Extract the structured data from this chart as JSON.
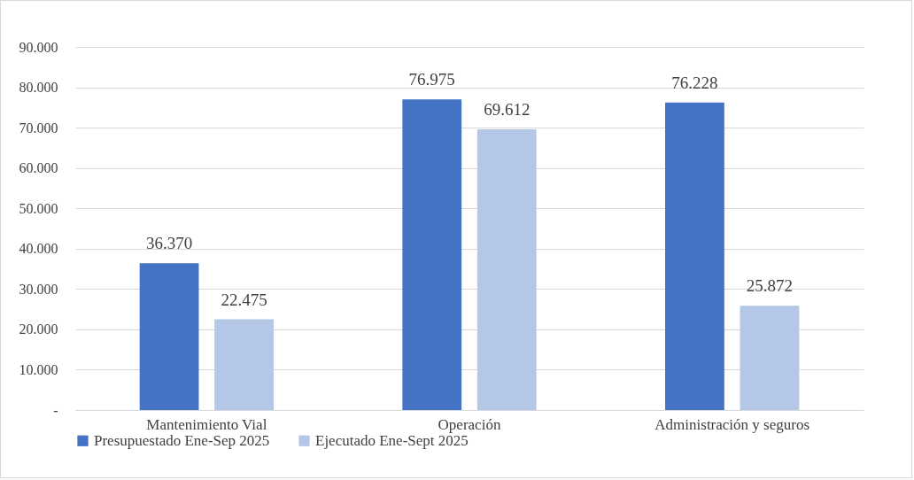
{
  "chart_data": {
    "type": "bar",
    "categories": [
      "Mantenimiento Vial",
      "Operación",
      "Administración y seguros"
    ],
    "series": [
      {
        "name": "Presupuestado Ene-Sep 2025",
        "color": "#4472c4",
        "values": [
          36370,
          76975,
          76228
        ],
        "value_labels": [
          "36.370",
          "76.975",
          "76.228"
        ]
      },
      {
        "name": "Ejecutado Ene-Sept 2025",
        "color": "#b4c7e7",
        "values": [
          22475,
          69612,
          25872
        ],
        "value_labels": [
          "22.475",
          "69.612",
          "25.872"
        ]
      }
    ],
    "ylim": [
      0,
      90000
    ],
    "yticks": [
      {
        "value": 0,
        "label": "-"
      },
      {
        "value": 10000,
        "label": "10.000"
      },
      {
        "value": 20000,
        "label": "20.000"
      },
      {
        "value": 30000,
        "label": "30.000"
      },
      {
        "value": 40000,
        "label": "40.000"
      },
      {
        "value": 50000,
        "label": "50.000"
      },
      {
        "value": 60000,
        "label": "60.000"
      },
      {
        "value": 70000,
        "label": "70.000"
      },
      {
        "value": 80000,
        "label": "80.000"
      },
      {
        "value": 90000,
        "label": "90.000"
      }
    ],
    "grid": "y",
    "legend": "bottom"
  }
}
